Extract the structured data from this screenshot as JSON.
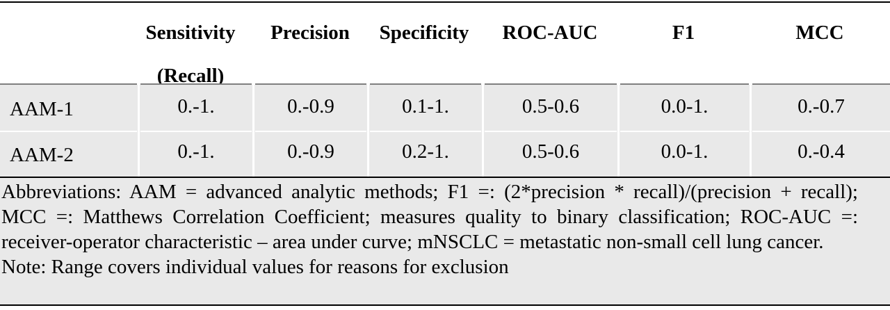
{
  "table": {
    "columns": [
      {
        "key": "sensitivity",
        "label_line1": "Sensitivity",
        "label_line2": "(Recall)"
      },
      {
        "key": "precision",
        "label_line1": "Precision"
      },
      {
        "key": "specificity",
        "label_line1": "Specificity"
      },
      {
        "key": "roc_auc",
        "label_line1": "ROC-AUC"
      },
      {
        "key": "f1",
        "label_line1": "F1"
      },
      {
        "key": "mcc",
        "label_line1": "MCC"
      }
    ],
    "rows": [
      {
        "label": "AAM-1",
        "values": [
          "0.-1.",
          "0.-0.9",
          "0.1-1.",
          "0.5-0.6",
          "0.0-1.",
          "0.-0.7"
        ]
      },
      {
        "label": "AAM-2",
        "values": [
          "0.-1.",
          "0.-0.9",
          "0.2-1.",
          "0.5-0.6",
          "0.0-1.",
          "0.-0.4"
        ]
      }
    ]
  },
  "footnotes": {
    "abbreviations": "Abbreviations: AAM = advanced analytic methods; F1 =: (2*precision * recall)/(precision + recall); MCC =: Matthews Correlation Coefficient; measures quality to binary classification; ROC-AUC =: receiver-operator characteristic – area under curve; mNSCLC = metastatic non-small cell lung cancer.",
    "note": "Note: Range covers individual values for reasons for exclusion"
  },
  "colors": {
    "body_shading": "#e9e9e9",
    "rule": "#000000",
    "header_rule": "#7f7f7f"
  }
}
